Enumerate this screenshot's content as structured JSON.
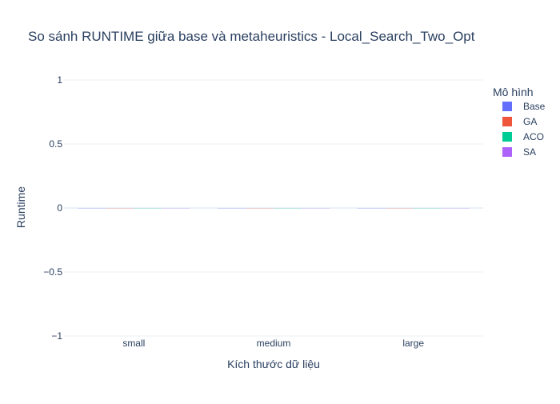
{
  "chart_data": {
    "type": "bar",
    "title": "So sánh RUNTIME giữa base và metaheuristics - Local_Search_Two_Opt",
    "xlabel": "Kích thước dữ liệu",
    "ylabel": "Runtime",
    "categories": [
      "small",
      "medium",
      "large"
    ],
    "series": [
      {
        "name": "Base",
        "values": [
          0,
          0,
          0
        ],
        "color": "#636efa"
      },
      {
        "name": "GA",
        "values": [
          0,
          0,
          0
        ],
        "color": "#EF553B"
      },
      {
        "name": "ACO",
        "values": [
          0,
          0,
          0
        ],
        "color": "#00cc96"
      },
      {
        "name": "SA",
        "values": [
          0,
          0,
          0
        ],
        "color": "#ab63fa"
      }
    ],
    "ylim": [
      -1,
      1
    ],
    "yticks": [
      1,
      0.5,
      0,
      -0.5,
      -1
    ],
    "ytick_labels": [
      "1",
      "0.5",
      "0",
      "−0.5",
      "−1"
    ],
    "grid": true,
    "legend": {
      "title": "Mô hình",
      "position": "right"
    },
    "colors": {
      "text": "#2a3f5f",
      "grid": "#ebf0f8",
      "zeroline": "#ebf0f8",
      "background": "#ffffff"
    }
  }
}
